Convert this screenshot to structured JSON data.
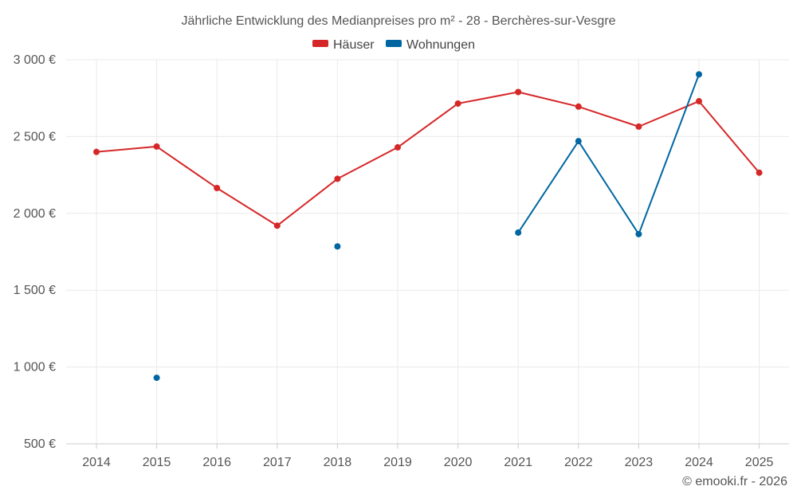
{
  "chart_data": {
    "type": "line",
    "title": "Jährliche Entwicklung des Medianpreises pro m² - 28 - Berchères-sur-Vesgre",
    "categories": [
      "2014",
      "2015",
      "2016",
      "2017",
      "2018",
      "2019",
      "2020",
      "2021",
      "2022",
      "2023",
      "2024",
      "2025"
    ],
    "series": [
      {
        "name": "Häuser",
        "color": "#d62728",
        "values": [
          2400,
          2435,
          2165,
          1920,
          2225,
          2430,
          2715,
          2790,
          2695,
          2565,
          2730,
          2265
        ]
      },
      {
        "name": "Wohnungen",
        "color": "#0066a1",
        "values": [
          null,
          930,
          null,
          null,
          1785,
          null,
          null,
          1875,
          2470,
          1865,
          2905,
          null
        ]
      }
    ],
    "y_ticks": [
      "500 €",
      "1 000 €",
      "1 500 €",
      "2 000 €",
      "2 500 €",
      "3 000 €"
    ],
    "y_tick_values": [
      500,
      1000,
      1500,
      2000,
      2500,
      3000
    ],
    "ylim": [
      500,
      3000
    ],
    "grid": true,
    "legend_position": "top-center",
    "credit": "© emooki.fr - 2026"
  }
}
